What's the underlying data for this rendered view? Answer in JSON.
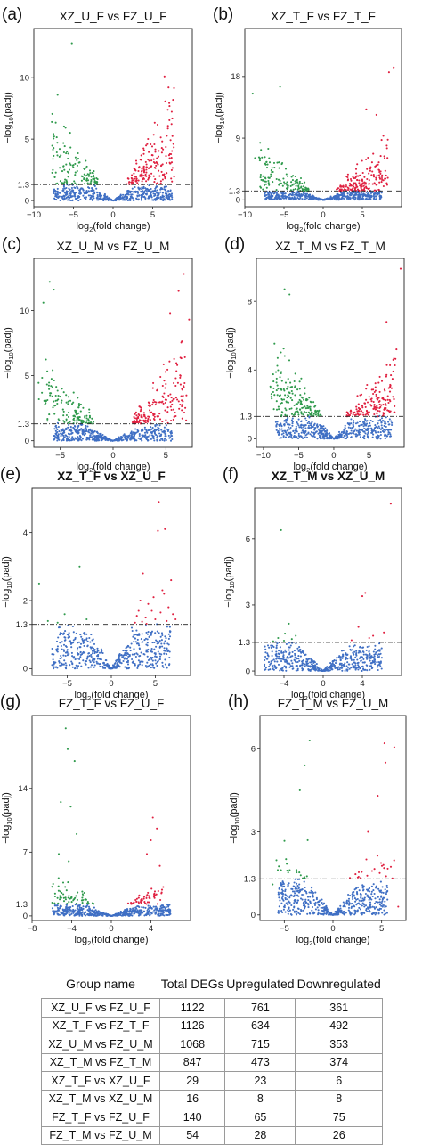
{
  "colors": {
    "up": "#e02040",
    "down": "#2f9a4c",
    "ns": "#3f6fc4",
    "threshold_line": "#222222",
    "frame": "#222222"
  },
  "chart_data": [
    {
      "type": "scatter",
      "panel_label": "(a)",
      "title": "XZ_U_F vs FZ_U_F",
      "xlabel": "log2(fold change)",
      "ylabel": "−log10(padj)",
      "xlim": [
        -10,
        10
      ],
      "ylim": [
        -0.5,
        14
      ],
      "xticks": [
        -10,
        -5,
        0,
        5
      ],
      "yticks": [
        0,
        1.3,
        5,
        10
      ],
      "threshold_y": 1.3,
      "grid": false,
      "series": [
        {
          "key": "up",
          "n": 180,
          "seed": 11,
          "spread": 3,
          "peak_y": 10.2,
          "x_max": 7.5,
          "outliers": [
            [
              6.5,
              10.1
            ],
            [
              7.0,
              9.2
            ]
          ]
        },
        {
          "key": "down",
          "n": 130,
          "seed": 12,
          "spread": 3,
          "peak_y": 8.5,
          "x_min": -7.5,
          "outliers": [
            [
              -5.2,
              12.8
            ],
            [
              -7.0,
              8.6
            ]
          ]
        }
      ]
    },
    {
      "type": "scatter",
      "panel_label": "(b)",
      "title": "XZ_T_F vs FZ_T_F",
      "xlabel": "log2(fold change)",
      "ylabel": "−log10(padj)",
      "xlim": [
        -10,
        10
      ],
      "ylim": [
        -1,
        25
      ],
      "xticks": [
        -10,
        -5,
        0,
        5
      ],
      "yticks": [
        0,
        1.3,
        9,
        18
      ],
      "threshold_y": 1.3,
      "grid": false,
      "series": [
        {
          "key": "up",
          "n": 170,
          "seed": 21,
          "spread": 3,
          "peak_y": 11,
          "x_max": 8,
          "outliers": [
            [
              9.0,
              19.3
            ],
            [
              8.4,
              18.6
            ],
            [
              5.5,
              13.2
            ],
            [
              6.8,
              12.4
            ]
          ]
        },
        {
          "key": "down",
          "n": 130,
          "seed": 22,
          "spread": 3,
          "peak_y": 10,
          "x_min": -8,
          "outliers": [
            [
              -9.0,
              15.5
            ],
            [
              -5.5,
              16.5
            ],
            [
              -8.7,
              6.1
            ]
          ]
        }
      ]
    },
    {
      "type": "scatter",
      "panel_label": "(c)",
      "title": "XZ_U_M vs FZ_U_M",
      "xlabel": "log2(fold change)",
      "ylabel": "−log10(padj)",
      "xlim": [
        -7.5,
        7.5
      ],
      "ylim": [
        -0.5,
        14
      ],
      "xticks": [
        -5,
        0,
        5
      ],
      "yticks": [
        0,
        1.3,
        5,
        10
      ],
      "threshold_y": 1.3,
      "grid": false,
      "series": [
        {
          "key": "up",
          "n": 170,
          "seed": 31,
          "spread": 3,
          "peak_y": 9,
          "x_max": 6.5,
          "outliers": [
            [
              6.7,
              12.8
            ],
            [
              6.2,
              11.5
            ],
            [
              5.4,
              9.8
            ],
            [
              7.2,
              9.3
            ]
          ]
        },
        {
          "key": "down",
          "n": 130,
          "seed": 32,
          "spread": 3,
          "peak_y": 8,
          "x_min": -6.5,
          "outliers": [
            [
              -6.0,
              12.2
            ],
            [
              -5.6,
              11.6
            ],
            [
              -6.6,
              10.6
            ]
          ]
        }
      ]
    },
    {
      "type": "scatter",
      "panel_label": "(d)",
      "title": "XZ_T_M vs FZ_T_M",
      "xlabel": "log2(fold change)",
      "ylabel": "−log10(padj)",
      "xlim": [
        -11,
        10
      ],
      "ylim": [
        -0.5,
        10.5
      ],
      "xticks": [
        -10,
        -5,
        0,
        5
      ],
      "yticks": [
        0,
        1.3,
        4,
        8
      ],
      "threshold_y": 1.3,
      "grid": false,
      "series": [
        {
          "key": "up",
          "n": 160,
          "seed": 41,
          "spread": 3.5,
          "peak_y": 5.5,
          "x_max": 8.5,
          "outliers": [
            [
              7.5,
              6.8
            ],
            [
              9.5,
              9.9
            ],
            [
              8.9,
              5.2
            ]
          ]
        },
        {
          "key": "down",
          "n": 170,
          "seed": 42,
          "spread": 4,
          "peak_y": 6.5,
          "x_min": -8.5,
          "outliers": [
            [
              -7.0,
              8.7
            ],
            [
              -6.3,
              8.4
            ]
          ]
        }
      ]
    },
    {
      "type": "scatter",
      "panel_label": "(e)",
      "title": "XZ_T_F vs XZ_U_F",
      "xlabel": "log2(fold change)",
      "ylabel": "−log10(padj)",
      "xlim": [
        -9,
        9
      ],
      "ylim": [
        -0.2,
        5.3
      ],
      "xticks": [
        -5,
        0,
        5
      ],
      "yticks": [
        0,
        1.3,
        2,
        4
      ],
      "threshold_y": 1.3,
      "grid": false,
      "series": [
        {
          "key": "up",
          "n": 0,
          "seed": 51,
          "spread": 0,
          "peak_y": 0,
          "outliers": [
            [
              5.4,
              4.9
            ],
            [
              5.3,
              4.05
            ],
            [
              6.1,
              4.1
            ],
            [
              3.6,
              2.8
            ],
            [
              5.8,
              2.3
            ],
            [
              3.3,
              2.0
            ],
            [
              6.5,
              1.8
            ],
            [
              4.6,
              1.7
            ],
            [
              7.0,
              1.6
            ],
            [
              3.9,
              1.5
            ],
            [
              2.9,
              1.55
            ],
            [
              6.3,
              1.4
            ],
            [
              2.7,
              1.35
            ],
            [
              5.0,
              1.45
            ],
            [
              4.2,
              1.9
            ],
            [
              6.0,
              2.2
            ],
            [
              3.1,
              1.7
            ],
            [
              7.3,
              1.45
            ],
            [
              4.8,
              2.1
            ],
            [
              5.6,
              1.65
            ],
            [
              3.5,
              1.38
            ],
            [
              6.8,
              2.6
            ],
            [
              4.0,
              1.32
            ]
          ]
        },
        {
          "key": "down",
          "n": 0,
          "seed": 52,
          "spread": 0,
          "peak_y": 0,
          "outliers": [
            [
              -8.2,
              2.5
            ],
            [
              -3.6,
              3.0
            ],
            [
              -7.2,
              1.4
            ],
            [
              -5.3,
              1.6
            ],
            [
              -2.8,
              1.45
            ],
            [
              -6.1,
              1.35
            ]
          ]
        }
      ]
    },
    {
      "type": "scatter",
      "panel_label": "(f)",
      "title": "XZ_T_M vs XZ_U_M",
      "xlabel": "log2(fold change)",
      "ylabel": "−log10(padj)",
      "xlim": [
        -7,
        8
      ],
      "ylim": [
        -0.2,
        8.3
      ],
      "xticks": [
        -4,
        0,
        4
      ],
      "yticks": [
        0,
        1.3,
        3,
        6
      ],
      "threshold_y": 1.3,
      "grid": false,
      "series": [
        {
          "key": "up",
          "n": 0,
          "seed": 61,
          "spread": 0,
          "peak_y": 0,
          "outliers": [
            [
              6.9,
              7.6
            ],
            [
              4.3,
              3.55
            ],
            [
              4.0,
              3.4
            ],
            [
              3.6,
              2.0
            ],
            [
              5.1,
              1.6
            ],
            [
              2.9,
              1.4
            ],
            [
              6.2,
              1.75
            ],
            [
              4.7,
              1.5
            ]
          ]
        },
        {
          "key": "down",
          "n": 0,
          "seed": 62,
          "spread": 0,
          "peak_y": 0,
          "outliers": [
            [
              -4.3,
              6.4
            ],
            [
              -3.5,
              2.15
            ],
            [
              -3.9,
              1.7
            ],
            [
              -4.6,
              1.5
            ],
            [
              -3.2,
              1.45
            ],
            [
              -5.1,
              1.35
            ],
            [
              -2.8,
              1.6
            ],
            [
              -4.0,
              1.38
            ]
          ]
        }
      ]
    },
    {
      "type": "scatter",
      "panel_label": "(g)",
      "title": "FZ_T_F vs FZ_U_F",
      "xlabel": "log2(fold change)",
      "ylabel": "−log10(padj)",
      "xlim": [
        -8,
        8
      ],
      "ylim": [
        -0.5,
        22
      ],
      "xticks": [
        -8,
        -4,
        0,
        4
      ],
      "yticks": [
        0,
        1.3,
        7,
        14
      ],
      "threshold_y": 1.3,
      "grid": false,
      "series": [
        {
          "key": "up",
          "n": 50,
          "seed": 71,
          "spread": 2,
          "peak_y": 5,
          "x_max": 5,
          "outliers": [
            [
              4.2,
              10.8
            ],
            [
              4.6,
              9.6
            ],
            [
              4.0,
              8.3
            ],
            [
              3.6,
              6.8
            ],
            [
              4.9,
              5.5
            ]
          ]
        },
        {
          "key": "down",
          "n": 60,
          "seed": 72,
          "spread": 2.5,
          "peak_y": 6,
          "x_min": -5.5,
          "outliers": [
            [
              -4.6,
              20.6
            ],
            [
              -4.4,
              18.3
            ],
            [
              -3.7,
              17.0
            ],
            [
              -5.1,
              12.5
            ],
            [
              -4.1,
              12.0
            ],
            [
              -3.5,
              9.0
            ],
            [
              -5.3,
              6.8
            ],
            [
              -4.3,
              6.0
            ]
          ]
        }
      ]
    },
    {
      "type": "scatter",
      "panel_label": "(h)",
      "title": "FZ_T_M vs FZ_U_M",
      "xlabel": "log2(fold change)",
      "ylabel": "−log10(padj)",
      "xlim": [
        -7.5,
        7.5
      ],
      "ylim": [
        -0.2,
        7.2
      ],
      "xticks": [
        -5,
        0,
        5
      ],
      "yticks": [
        0,
        1.3,
        3,
        6
      ],
      "threshold_y": 1.3,
      "grid": false,
      "series": [
        {
          "key": "up",
          "n": 22,
          "seed": 81,
          "spread": 2.5,
          "peak_y": 3.5,
          "x_max": 6,
          "outliers": [
            [
              5.3,
              6.2
            ],
            [
              6.3,
              6.05
            ],
            [
              5.4,
              5.5
            ],
            [
              4.6,
              4.3
            ],
            [
              3.6,
              3.0
            ],
            [
              6.7,
              0.3
            ]
          ]
        },
        {
          "key": "down",
          "n": 18,
          "seed": 82,
          "spread": 2,
          "peak_y": 3.2,
          "x_min": -5.5,
          "outliers": [
            [
              -2.4,
              6.3
            ],
            [
              -2.9,
              5.4
            ],
            [
              -3.4,
              4.5
            ],
            [
              -2.6,
              2.7
            ],
            [
              -6.2,
              1.1
            ]
          ]
        }
      ]
    },
    {
      "type": "table",
      "columns": [
        "Group name",
        "Total DEGs",
        "Upregulated",
        "Downregulated"
      ],
      "rows": [
        [
          "XZ_U_F vs FZ_U_F",
          "1122",
          "761",
          "361"
        ],
        [
          "XZ_T_F vs FZ_T_F",
          "1126",
          "634",
          "492"
        ],
        [
          "XZ_U_M vs FZ_U_M",
          "1068",
          "715",
          "353"
        ],
        [
          "XZ_T_M vs FZ_T_M",
          "847",
          "473",
          "374"
        ],
        [
          "XZ_T_F vs XZ_U_F",
          "29",
          "23",
          "6"
        ],
        [
          "XZ_T_M vs XZ_U_M",
          "16",
          "8",
          "8"
        ],
        [
          "FZ_T_F vs FZ_U_F",
          "140",
          "65",
          "75"
        ],
        [
          "FZ_T_M vs FZ_U_M",
          "54",
          "28",
          "26"
        ]
      ]
    }
  ]
}
